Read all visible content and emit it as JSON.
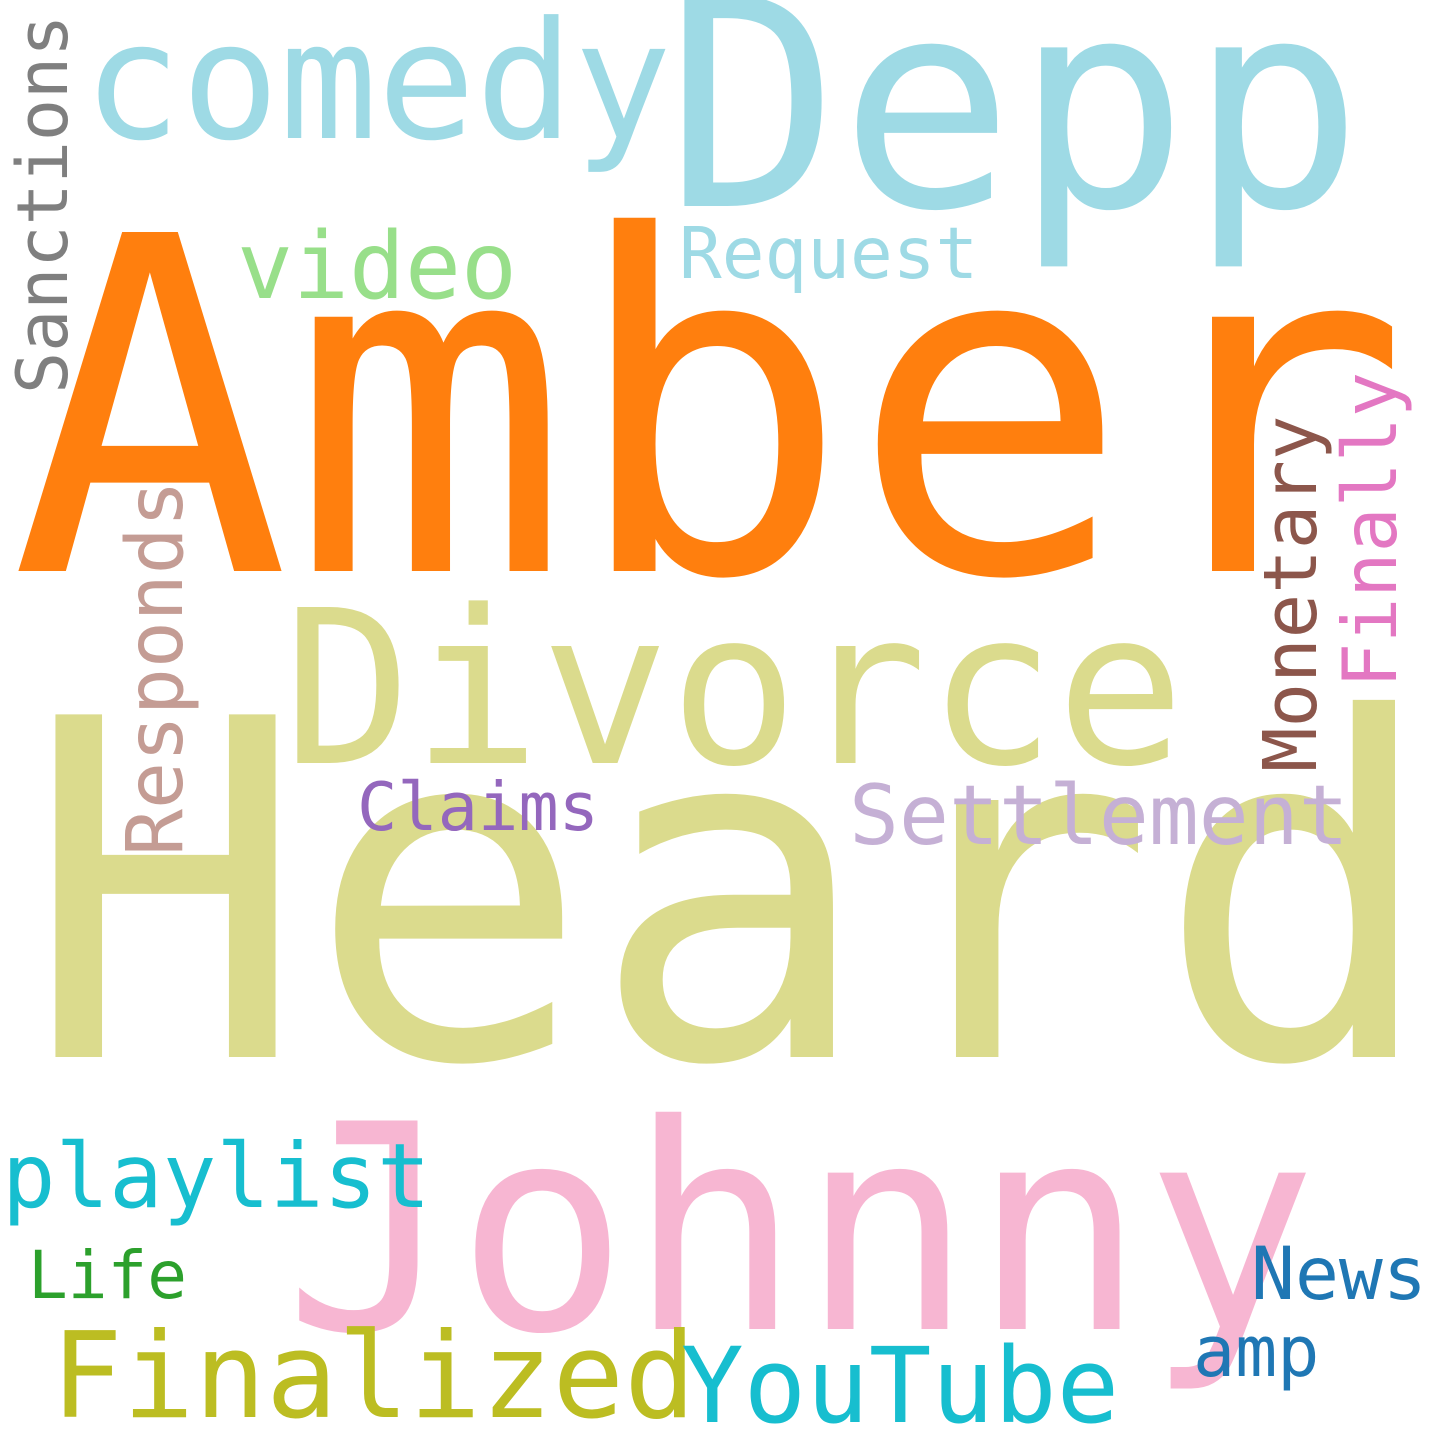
{
  "words": [
    {
      "text": "Heard",
      "color": "#dbdb8d"
    },
    {
      "text": "Amber",
      "color": "#ff7f0e"
    },
    {
      "text": "Johnny",
      "color": "#f7b6d2"
    },
    {
      "text": "Depp",
      "color": "#9edae5"
    },
    {
      "text": "Divorce",
      "color": "#dbdb8d"
    },
    {
      "text": "comedy",
      "color": "#9edae5"
    },
    {
      "text": "Finalized",
      "color": "#bcbd22"
    },
    {
      "text": "YouTube",
      "color": "#17becf"
    },
    {
      "text": "playlist",
      "color": "#17becf"
    },
    {
      "text": "Settlement",
      "color": "#c5b0d5"
    },
    {
      "text": "video",
      "color": "#98df8a"
    },
    {
      "text": "Request",
      "color": "#9edae5"
    },
    {
      "text": "Sanctions",
      "color": "#7f7f7f"
    },
    {
      "text": "Responds",
      "color": "#c49c94"
    },
    {
      "text": "Monetary",
      "color": "#8c564b"
    },
    {
      "text": "Finally",
      "color": "#e377c2"
    },
    {
      "text": "Claims",
      "color": "#9467bd"
    },
    {
      "text": "News",
      "color": "#1f77b4"
    },
    {
      "text": "Life",
      "color": "#2ca02c"
    },
    {
      "text": "amp",
      "color": "#1f77b4"
    }
  ]
}
